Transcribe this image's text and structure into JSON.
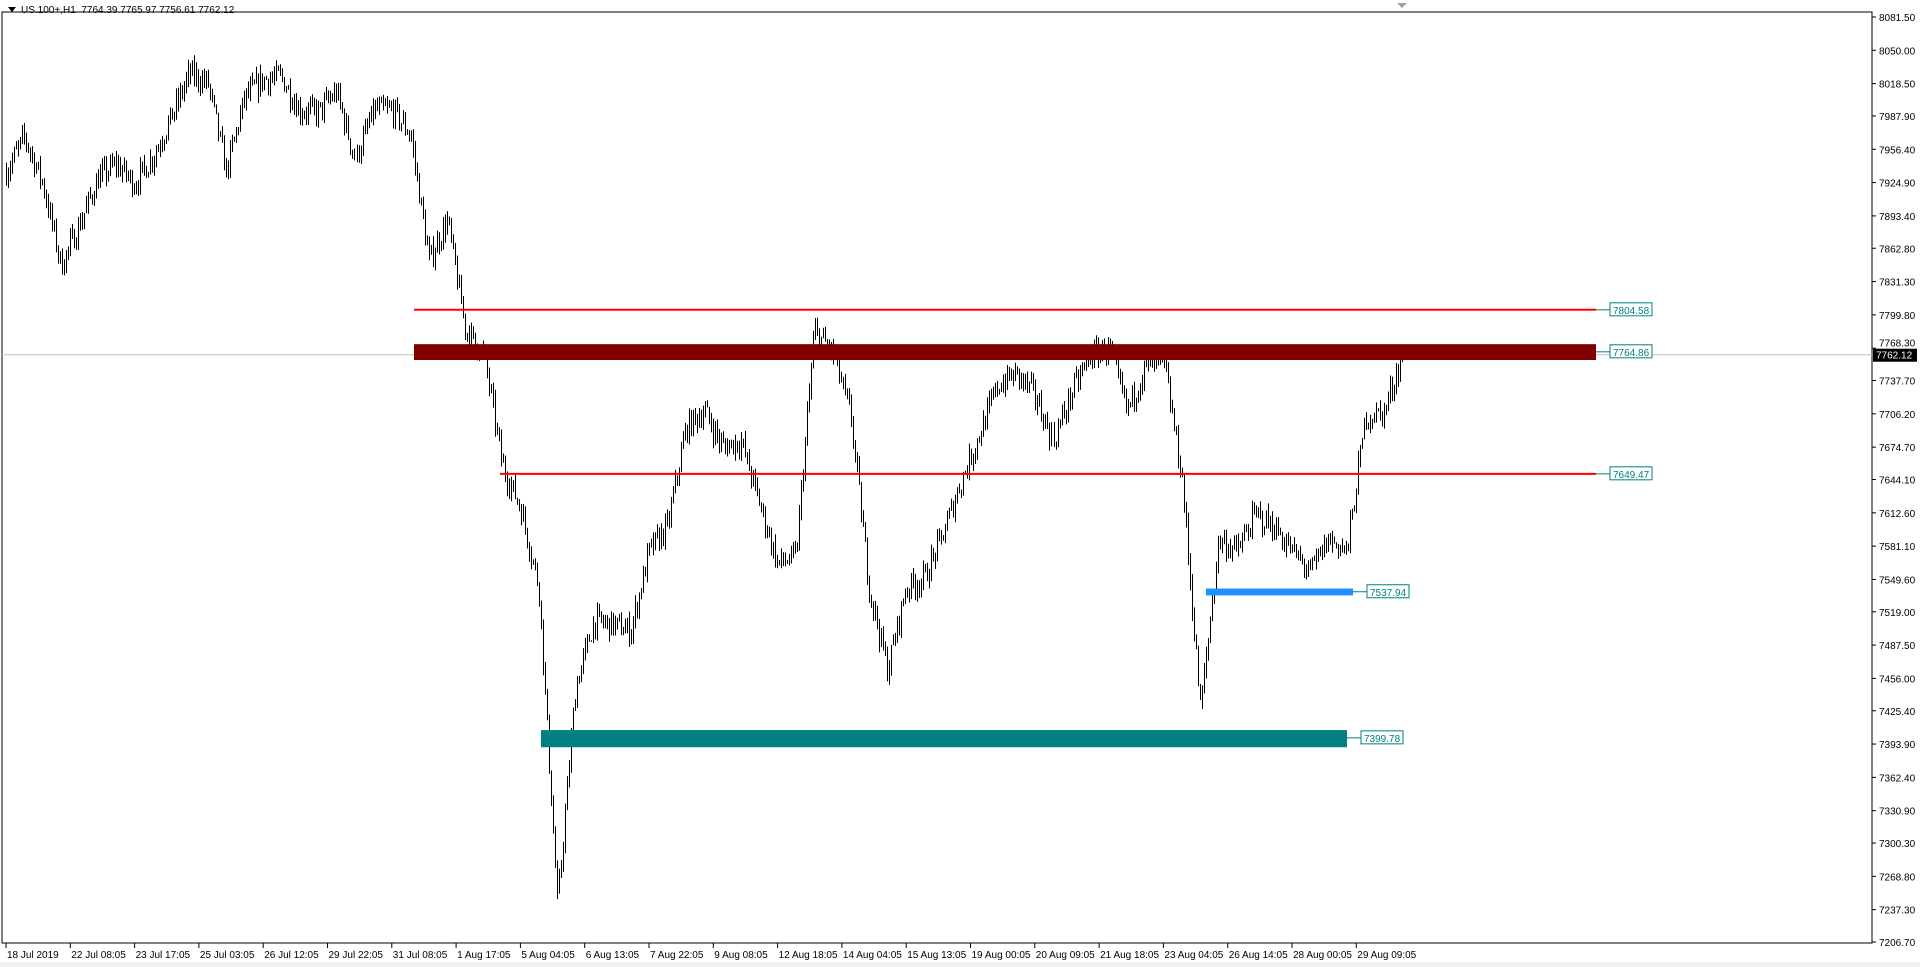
{
  "header": {
    "symbol": "US.100+,H1",
    "ohlc": "7764.39 7765.97 7756.61 7762.12",
    "menu_icon": "triangle-down-icon"
  },
  "chart_data": {
    "type": "ohlc",
    "timeframe": "H1",
    "ylim": [
      7206.7,
      8081.5
    ],
    "y_ticks": [
      "8081.50",
      "8050.00",
      "8018.50",
      "7987.90",
      "7956.40",
      "7924.90",
      "7893.40",
      "7862.80",
      "7831.30",
      "7799.80",
      "7768.30",
      "7737.70",
      "7706.20",
      "7674.70",
      "7644.10",
      "7612.60",
      "7581.10",
      "7549.60",
      "7519.00",
      "7487.50",
      "7456.00",
      "7425.40",
      "7393.90",
      "7362.40",
      "7330.90",
      "7300.30",
      "7268.80",
      "7237.30",
      "7206.70"
    ],
    "x_ticks": [
      "18 Jul 2019",
      "22 Jul 08:05",
      "23 Jul 17:05",
      "25 Jul 03:05",
      "26 Jul 12:05",
      "29 Jul 22:05",
      "31 Jul 08:05",
      "1 Aug 17:05",
      "5 Aug 04:05",
      "6 Aug 13:05",
      "7 Aug 22:05",
      "9 Aug 08:05",
      "12 Aug 18:05",
      "14 Aug 04:05",
      "15 Aug 13:05",
      "19 Aug 00:05",
      "20 Aug 09:05",
      "21 Aug 18:05",
      "23 Aug 04:05",
      "26 Aug 14:05",
      "28 Aug 00:05",
      "29 Aug 09:05"
    ],
    "price_path": [
      7935.5,
      7968.0,
      7923.9,
      7846.3,
      7885.7,
      7928.5,
      7942.5,
      7923.9,
      7949.4,
      7986.5,
      8028.2,
      8018.9,
      7935.5,
      8005.0,
      8022.4,
      8024.7,
      7993.4,
      7991.1,
      8010.8,
      7947.1,
      7993.4,
      7993.4,
      7970.3,
      7850.9,
      7889.2,
      7784.9,
      7761.7,
      7657.4,
      7616.9,
      7541.5,
      7240.3,
      7448.9,
      7510.2,
      7506.8,
      7501.0,
      7576.3,
      7599.5,
      7692.2,
      7709.6,
      7674.8,
      7680.6,
      7622.7,
      7564.7,
      7570.5,
      7784.9,
      7764.0,
      7703.8,
      7541.5,
      7463.9,
      7541.5,
      7550.8,
      7591.3,
      7642.3,
      7686.4,
      7732.7,
      7744.3,
      7724.6,
      7680.6,
      7727.0,
      7761.7,
      7767.5,
      7709.6,
      7750.1,
      7754.7,
      7645.8,
      7425.7,
      7587.9,
      7576.3,
      7611.1,
      7599.5,
      7576.3,
      7556.6,
      7587.9,
      7576.3,
      7703.8,
      7707.2,
      7762.12
    ],
    "current_price": "7762.12",
    "levels": [
      {
        "kind": "line",
        "value": "7804.58",
        "color": "#ff0000"
      },
      {
        "kind": "zone",
        "value": "7764.86",
        "top": 7772.1,
        "bottom": 7757.1,
        "color": "#800000"
      },
      {
        "kind": "line",
        "value": "7649.47",
        "color": "#ff0000"
      },
      {
        "kind": "zone",
        "value": "7537.94",
        "top": 7541.0,
        "bottom": 7534.5,
        "color": "#1e90ff"
      },
      {
        "kind": "zone",
        "value": "7399.78",
        "top": 7407.1,
        "bottom": 7390.9,
        "color": "#008080"
      }
    ],
    "label_color": "#008080",
    "bar_color": "#000000",
    "grid": false
  }
}
